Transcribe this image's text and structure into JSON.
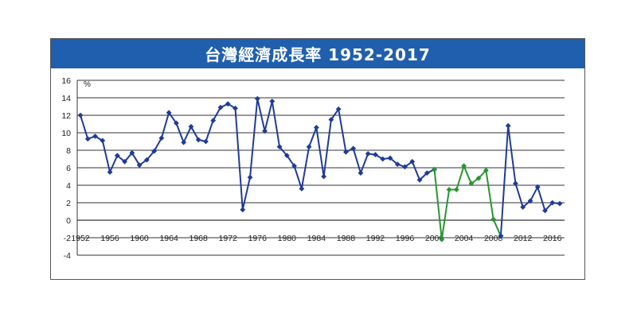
{
  "chart_data": {
    "type": "line",
    "title": "台灣經濟成長率 1952-2017",
    "ylabel": "%",
    "ylim": [
      -4,
      16
    ],
    "yticks": [
      -4,
      -2,
      0,
      2,
      4,
      6,
      8,
      10,
      12,
      14,
      16
    ],
    "xlim": [
      1952,
      2017
    ],
    "xticks": [
      "1952",
      "1956",
      "1960",
      "1964",
      "1968",
      "1972",
      "1976",
      "1980",
      "1984",
      "1988",
      "1992",
      "1996",
      "2000",
      "2004",
      "2008",
      "2012",
      "2016"
    ],
    "grid": true,
    "series": [
      {
        "color": "#1f3b99",
        "points": [
          [
            1952,
            12.0
          ],
          [
            1953,
            9.3
          ],
          [
            1954,
            9.6
          ],
          [
            1955,
            9.1
          ],
          [
            1956,
            5.5
          ],
          [
            1957,
            7.4
          ],
          [
            1958,
            6.7
          ],
          [
            1959,
            7.7
          ],
          [
            1960,
            6.3
          ],
          [
            1961,
            6.9
          ],
          [
            1962,
            7.9
          ],
          [
            1963,
            9.4
          ],
          [
            1964,
            12.3
          ],
          [
            1965,
            11.1
          ],
          [
            1966,
            8.9
          ],
          [
            1967,
            10.7
          ],
          [
            1968,
            9.2
          ],
          [
            1969,
            9.0
          ],
          [
            1970,
            11.4
          ],
          [
            1971,
            12.9
          ],
          [
            1972,
            13.3
          ],
          [
            1973,
            12.8
          ],
          [
            1974,
            1.2
          ],
          [
            1975,
            4.9
          ],
          [
            1976,
            13.9
          ],
          [
            1977,
            10.2
          ],
          [
            1978,
            13.6
          ],
          [
            1979,
            8.4
          ],
          [
            1980,
            7.4
          ],
          [
            1981,
            6.2
          ],
          [
            1982,
            3.6
          ],
          [
            1983,
            8.4
          ],
          [
            1984,
            10.6
          ],
          [
            1985,
            5.0
          ],
          [
            1986,
            11.5
          ],
          [
            1987,
            12.7
          ],
          [
            1988,
            7.8
          ],
          [
            1989,
            8.2
          ],
          [
            1990,
            5.4
          ],
          [
            1991,
            7.6
          ],
          [
            1992,
            7.5
          ],
          [
            1993,
            7.0
          ],
          [
            1994,
            7.1
          ],
          [
            1995,
            6.4
          ],
          [
            1996,
            6.1
          ],
          [
            1997,
            6.7
          ],
          [
            1998,
            4.6
          ],
          [
            1999,
            5.4
          ],
          [
            2000,
            5.8
          ]
        ]
      },
      {
        "color": "#27962f",
        "points": [
          [
            2000,
            5.8
          ],
          [
            2001,
            -2.2
          ],
          [
            2002,
            3.5
          ],
          [
            2003,
            3.5
          ],
          [
            2004,
            6.2
          ],
          [
            2005,
            4.2
          ],
          [
            2006,
            4.8
          ],
          [
            2007,
            5.7
          ],
          [
            2008,
            0.1
          ],
          [
            2009,
            -1.8
          ]
        ]
      },
      {
        "color": "#1f3b99",
        "points": [
          [
            2009,
            -1.8
          ],
          [
            2010,
            10.8
          ],
          [
            2011,
            4.2
          ],
          [
            2012,
            1.5
          ],
          [
            2013,
            2.2
          ],
          [
            2014,
            3.8
          ],
          [
            2015,
            1.1
          ],
          [
            2016,
            2.0
          ],
          [
            2017,
            1.9
          ]
        ]
      }
    ]
  }
}
